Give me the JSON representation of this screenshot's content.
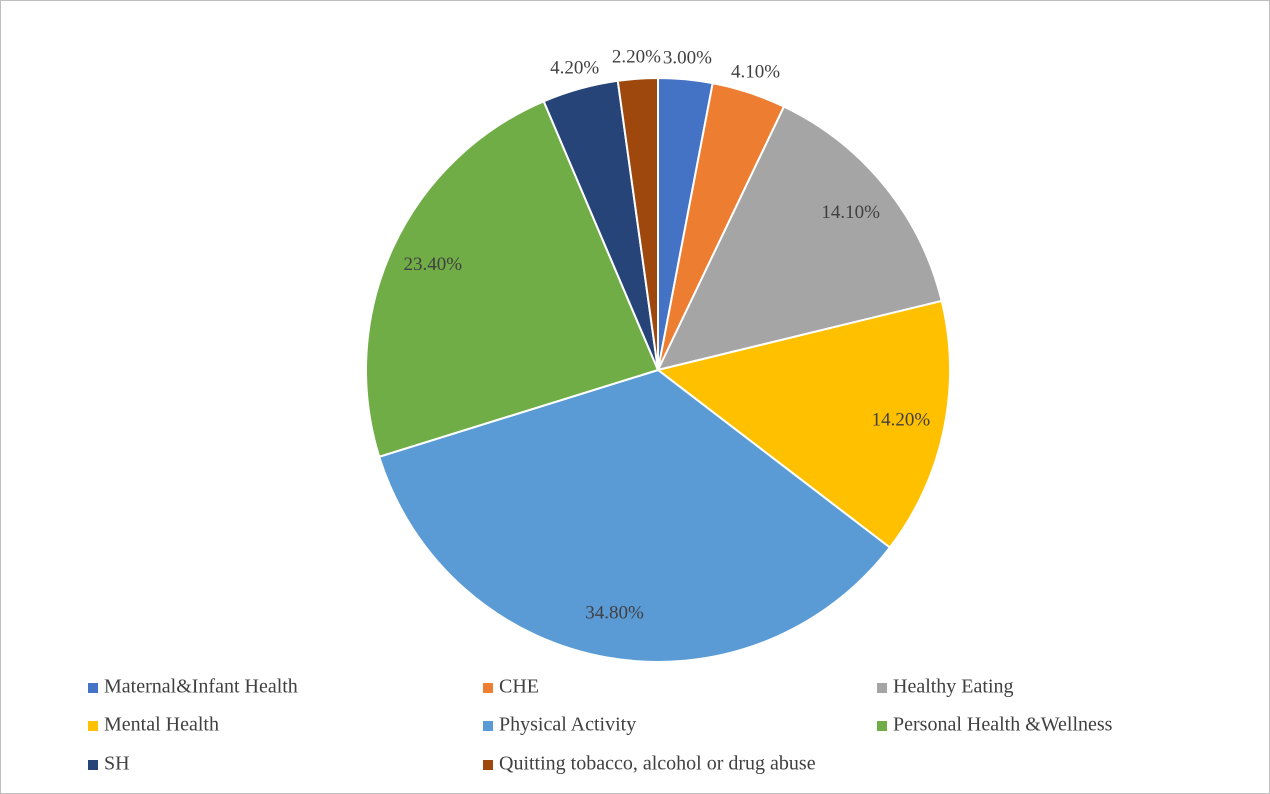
{
  "chart_data": {
    "type": "pie",
    "categories": [
      "Maternal&Infant Health",
      "CHE",
      "Healthy Eating",
      "Mental Health",
      "Physical Activity",
      "Personal Health &Wellness",
      "SH",
      "Quitting tobacco, alcohol or drug abuse"
    ],
    "values": [
      3.0,
      4.1,
      14.1,
      14.2,
      34.8,
      23.4,
      4.2,
      2.2
    ],
    "value_labels": [
      "3.00%",
      "4.10%",
      "14.10%",
      "14.20%",
      "34.80%",
      "23.40%",
      "4.20%",
      "2.20%"
    ],
    "colors": [
      "#4472c4",
      "#ed7d31",
      "#a5a5a5",
      "#ffc000",
      "#5b9bd5",
      "#70ad47",
      "#264478",
      "#9e480e"
    ],
    "legend": "bottom"
  }
}
